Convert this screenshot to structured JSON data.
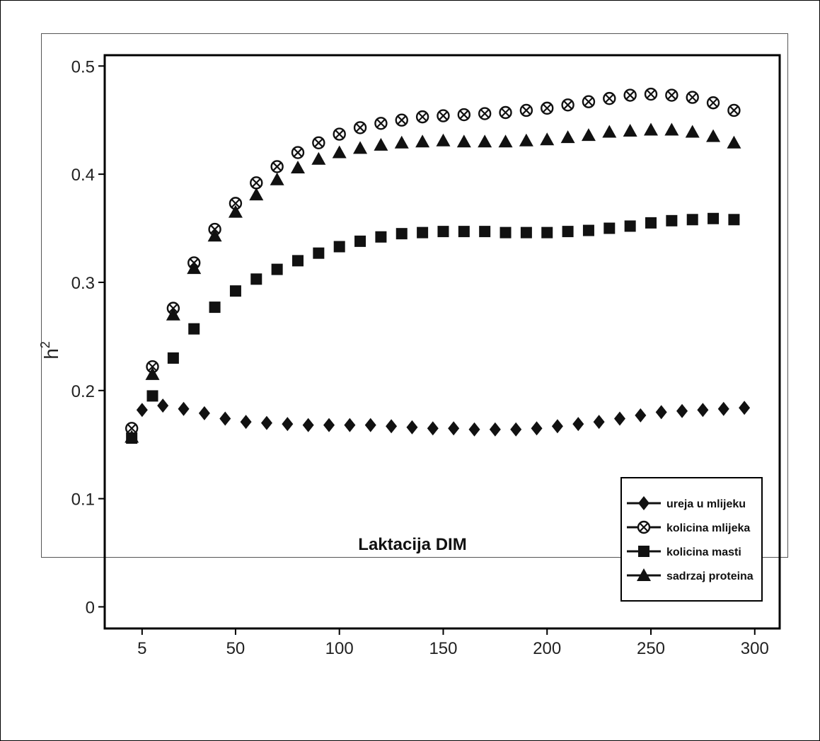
{
  "chart_data": {
    "type": "scatter",
    "title": "",
    "xlabel": "Laktacija DIM",
    "ylabel": "h",
    "ylabel_superscript": "2",
    "xlim": [
      -13,
      312
    ],
    "ylim": [
      -0.02,
      0.51
    ],
    "x_ticks": [
      5,
      50,
      100,
      150,
      200,
      250,
      300
    ],
    "x_tick_labels": [
      "5",
      "50",
      "100",
      "150",
      "200",
      "250",
      "300"
    ],
    "y_ticks": [
      0,
      0.1,
      0.2,
      0.3,
      0.4,
      0.5
    ],
    "y_tick_labels": [
      "0",
      "0.1",
      "0.2",
      "0.3",
      "0.4",
      "0.5"
    ],
    "grid": false,
    "legend_position": "bottom-right",
    "series": [
      {
        "name": "ureja u mlijeku",
        "marker": "diamond",
        "x": [
          0,
          5,
          15,
          25,
          35,
          45,
          55,
          65,
          75,
          85,
          95,
          105,
          115,
          125,
          135,
          145,
          155,
          165,
          175,
          185,
          195,
          205,
          215,
          225,
          235,
          245,
          255,
          265,
          275,
          285,
          295
        ],
        "y": [
          0.16,
          0.182,
          0.186,
          0.183,
          0.179,
          0.174,
          0.171,
          0.17,
          0.169,
          0.168,
          0.168,
          0.168,
          0.168,
          0.167,
          0.166,
          0.165,
          0.165,
          0.164,
          0.164,
          0.164,
          0.165,
          0.167,
          0.169,
          0.171,
          0.174,
          0.177,
          0.18,
          0.181,
          0.182,
          0.183,
          0.184
        ]
      },
      {
        "name": "kolicina mlijeka",
        "marker": "crossed-circle",
        "x": [
          0,
          10,
          20,
          30,
          40,
          50,
          60,
          70,
          80,
          90,
          100,
          110,
          120,
          130,
          140,
          150,
          160,
          170,
          180,
          190,
          200,
          210,
          220,
          230,
          240,
          250,
          260,
          270,
          280,
          290
        ],
        "y": [
          0.165,
          0.222,
          0.276,
          0.318,
          0.349,
          0.373,
          0.392,
          0.407,
          0.42,
          0.429,
          0.437,
          0.443,
          0.447,
          0.45,
          0.453,
          0.454,
          0.455,
          0.456,
          0.457,
          0.459,
          0.461,
          0.464,
          0.467,
          0.47,
          0.473,
          0.474,
          0.473,
          0.471,
          0.466,
          0.459
        ]
      },
      {
        "name": "kolicina masti",
        "marker": "square",
        "x": [
          0,
          10,
          20,
          30,
          40,
          50,
          60,
          70,
          80,
          90,
          100,
          110,
          120,
          130,
          140,
          150,
          160,
          170,
          180,
          190,
          200,
          210,
          220,
          230,
          240,
          250,
          260,
          270,
          280,
          290
        ],
        "y": [
          0.156,
          0.195,
          0.23,
          0.257,
          0.277,
          0.292,
          0.303,
          0.312,
          0.32,
          0.327,
          0.333,
          0.338,
          0.342,
          0.345,
          0.346,
          0.347,
          0.347,
          0.347,
          0.346,
          0.346,
          0.346,
          0.347,
          0.348,
          0.35,
          0.352,
          0.355,
          0.357,
          0.358,
          0.359,
          0.358
        ]
      },
      {
        "name": "sadrzaj proteina",
        "marker": "triangle",
        "x": [
          0,
          10,
          20,
          30,
          40,
          50,
          60,
          70,
          80,
          90,
          100,
          110,
          120,
          130,
          140,
          150,
          160,
          170,
          180,
          190,
          200,
          210,
          220,
          230,
          240,
          250,
          260,
          270,
          280,
          290
        ],
        "y": [
          0.157,
          0.215,
          0.27,
          0.313,
          0.343,
          0.365,
          0.381,
          0.395,
          0.406,
          0.414,
          0.42,
          0.424,
          0.427,
          0.429,
          0.43,
          0.431,
          0.43,
          0.43,
          0.43,
          0.431,
          0.432,
          0.434,
          0.436,
          0.439,
          0.44,
          0.441,
          0.441,
          0.439,
          0.435,
          0.429
        ]
      }
    ]
  }
}
